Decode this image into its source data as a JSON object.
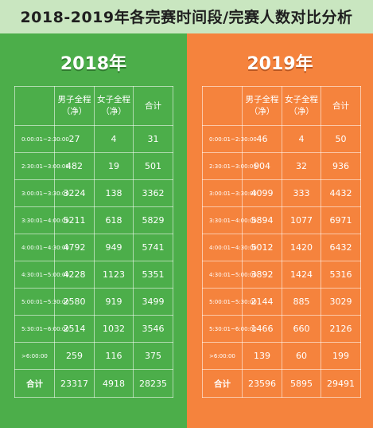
{
  "title": "2018-2019年各完赛时间段/完赛人数对比分析",
  "colors": {
    "panel_2018": "#4cae4a",
    "panel_2019": "#f5833d",
    "background": "#c9e6c0"
  },
  "chart_data": {
    "type": "table",
    "columns": [
      "",
      "男子全程（净）",
      "女子全程（净）",
      "合计"
    ],
    "time_ranges": [
      "0:00:01~2:30:00",
      "2:30:01~3:00:00",
      "3:00:01~3:30:00",
      "3:30:01~4:00:00",
      "4:00:01~4:30:00",
      "4:30:01~5:00:00",
      "5:00:01~5:30:00",
      "5:30:01~6:00:00",
      ">6:00:00"
    ],
    "total_label": "合计",
    "tables": [
      {
        "year": "2018年",
        "rows": [
          [
            "27",
            "4",
            "31"
          ],
          [
            "482",
            "19",
            "501"
          ],
          [
            "3224",
            "138",
            "3362"
          ],
          [
            "5211",
            "618",
            "5829"
          ],
          [
            "4792",
            "949",
            "5741"
          ],
          [
            "4228",
            "1123",
            "5351"
          ],
          [
            "2580",
            "919",
            "3499"
          ],
          [
            "2514",
            "1032",
            "3546"
          ],
          [
            "259",
            "116",
            "375"
          ]
        ],
        "total": [
          "23317",
          "4918",
          "28235"
        ]
      },
      {
        "year": "2019年",
        "rows": [
          [
            "46",
            "4",
            "50"
          ],
          [
            "904",
            "32",
            "936"
          ],
          [
            "4099",
            "333",
            "4432"
          ],
          [
            "5894",
            "1077",
            "6971"
          ],
          [
            "5012",
            "1420",
            "6432"
          ],
          [
            "3892",
            "1424",
            "5316"
          ],
          [
            "2144",
            "885",
            "3029"
          ],
          [
            "1466",
            "660",
            "2126"
          ],
          [
            "139",
            "60",
            "199"
          ]
        ],
        "total": [
          "23596",
          "5895",
          "29491"
        ]
      }
    ]
  }
}
